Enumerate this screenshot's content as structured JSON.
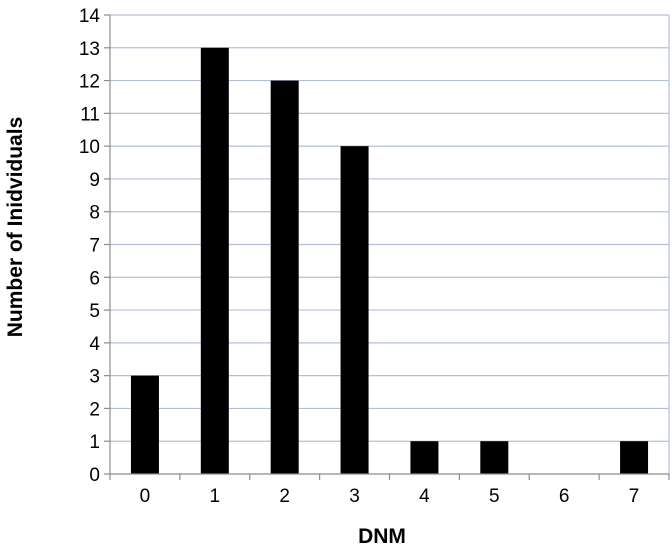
{
  "chart_data": {
    "type": "bar",
    "categories": [
      "0",
      "1",
      "2",
      "3",
      "4",
      "5",
      "6",
      "7"
    ],
    "values": [
      3,
      13,
      12,
      10,
      1,
      1,
      0,
      1
    ],
    "title": "",
    "xlabel": "DNM",
    "ylabel": "Number of Inidviduals",
    "ylim": [
      0,
      14
    ],
    "yticks": [
      "0",
      "1",
      "2",
      "3",
      "4",
      "5",
      "6",
      "7",
      "8",
      "9",
      "10",
      "11",
      "12",
      "13",
      "14"
    ],
    "grid": "horizontal",
    "legend": "none",
    "colors": {
      "bar": "#000000",
      "grid": "#b4c0db",
      "axis": "#8c8c8c"
    }
  }
}
